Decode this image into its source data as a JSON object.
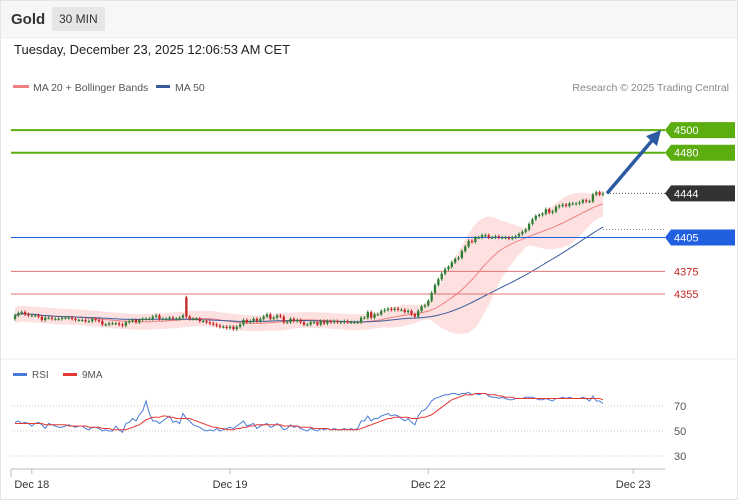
{
  "header": {
    "asset": "Gold",
    "timeframe": "30 MIN"
  },
  "datetime": "Tuesday, December 23, 2025 12:06:53 AM CET",
  "legend": {
    "ma20": "MA 20 + Bollinger Bands",
    "ma50": "MA 50"
  },
  "credit": "Research © 2025 Trading Central",
  "colors": {
    "up": "#2e7d32",
    "down": "#c62828",
    "ma20": "#f08080",
    "ma50": "#3a5a9a",
    "band": "#fde1e1",
    "target": "#5cad0f",
    "support": "#1f5fe0",
    "resist": "#e57373",
    "price": "#333333",
    "rsi": "#4a7bd8",
    "rsi_ma": "#e53935",
    "arrow": "#2c5aa0"
  },
  "levels": [
    {
      "value": 4500,
      "label": "4500",
      "kind": "target"
    },
    {
      "value": 4480,
      "label": "4480",
      "kind": "target"
    },
    {
      "value": 4444,
      "label": "4444",
      "kind": "price"
    },
    {
      "value": 4405,
      "label": "4405",
      "kind": "support"
    },
    {
      "value": 4375,
      "label": "4375",
      "kind": "resist"
    },
    {
      "value": 4355,
      "label": "4355",
      "kind": "resist"
    }
  ],
  "rsi": {
    "legend_rsi": "RSI",
    "legend_ma": "9MA",
    "ticks": [
      "70",
      "50",
      "30"
    ]
  },
  "chart_data": {
    "type": "candlestick",
    "x_labels": [
      "Dec 18",
      "Dec 19",
      "Dec 22",
      "Dec 23"
    ],
    "x_label_bars": [
      5,
      64,
      123,
      184
    ],
    "ylim": [
      4300,
      4510
    ],
    "closes": [
      4336,
      4338,
      4339,
      4337,
      4336,
      4336,
      4336,
      4335,
      4332,
      4334,
      4334,
      4333,
      4333,
      4333,
      4334,
      4334,
      4334,
      4333,
      4332,
      4332,
      4332,
      4331,
      4331,
      4333,
      4332,
      4331,
      4328,
      4328,
      4329,
      4329,
      4329,
      4328,
      4327,
      4330,
      4331,
      4332,
      4330,
      4332,
      4333,
      4333,
      4333,
      4335,
      4336,
      4333,
      4333,
      4333,
      4334,
      4333,
      4333,
      4334,
      4336,
      4335,
      4333,
      4333,
      4333,
      4331,
      4331,
      4330,
      4329,
      4328,
      4327,
      4326,
      4326,
      4325,
      4326,
      4324,
      4326,
      4328,
      4332,
      4330,
      4331,
      4333,
      4331,
      4333,
      4335,
      4337,
      4333,
      4334,
      4336,
      4335,
      4330,
      4330,
      4333,
      4331,
      4332,
      4330,
      4328,
      4328,
      4330,
      4330,
      4328,
      4331,
      4329,
      4331,
      4330,
      4331,
      4330,
      4330,
      4331,
      4330,
      4330,
      4330,
      4330,
      4334,
      4334,
      4339,
      4334,
      4337,
      4337,
      4340,
      4341,
      4342,
      4341,
      4342,
      4341,
      4341,
      4339,
      4340,
      4337,
      4335,
      4340,
      4344,
      4345,
      4349,
      4356,
      4363,
      4368,
      4373,
      4377,
      4379,
      4383,
      4386,
      4387,
      4393,
      4397,
      4402,
      4401,
      4405,
      4405,
      4407,
      4407,
      4405,
      4405,
      4406,
      4405,
      4405,
      4405,
      4404,
      4405,
      4406,
      4408,
      4410,
      4412,
      4417,
      4421,
      4424,
      4425,
      4426,
      4430,
      4427,
      4428,
      4432,
      4433,
      4434,
      4433,
      4435,
      4435,
      4435,
      4436,
      4438,
      4437,
      4437,
      4443,
      4445,
      4443,
      4444
    ],
    "opens": [
      4333,
      4336,
      4338,
      4339,
      4337,
      4336,
      4336,
      4336,
      4335,
      4332,
      4334,
      4334,
      4333,
      4333,
      4333,
      4334,
      4334,
      4334,
      4333,
      4332,
      4332,
      4332,
      4331,
      4331,
      4333,
      4332,
      4331,
      4328,
      4328,
      4329,
      4329,
      4329,
      4328,
      4327,
      4330,
      4331,
      4332,
      4330,
      4332,
      4333,
      4333,
      4333,
      4335,
      4336,
      4333,
      4333,
      4333,
      4334,
      4333,
      4333,
      4334,
      4352,
      4335,
      4333,
      4333,
      4333,
      4331,
      4331,
      4330,
      4329,
      4328,
      4327,
      4326,
      4326,
      4325,
      4326,
      4324,
      4326,
      4328,
      4332,
      4330,
      4331,
      4333,
      4331,
      4333,
      4335,
      4337,
      4333,
      4334,
      4336,
      4335,
      4330,
      4330,
      4333,
      4331,
      4332,
      4330,
      4328,
      4328,
      4330,
      4330,
      4328,
      4331,
      4329,
      4331,
      4330,
      4331,
      4330,
      4330,
      4331,
      4330,
      4330,
      4330,
      4330,
      4334,
      4334,
      4339,
      4334,
      4337,
      4337,
      4340,
      4341,
      4342,
      4341,
      4342,
      4341,
      4341,
      4339,
      4340,
      4337,
      4335,
      4340,
      4344,
      4345,
      4349,
      4356,
      4363,
      4368,
      4373,
      4377,
      4379,
      4383,
      4386,
      4387,
      4393,
      4397,
      4402,
      4401,
      4405,
      4405,
      4407,
      4407,
      4405,
      4405,
      4406,
      4405,
      4405,
      4405,
      4404,
      4405,
      4406,
      4408,
      4410,
      4412,
      4417,
      4421,
      4424,
      4425,
      4426,
      4430,
      4427,
      4428,
      4432,
      4433,
      4434,
      4433,
      4435,
      4435,
      4435,
      4436,
      4438,
      4437,
      4437,
      4443,
      4445,
      4443
    ],
    "rsi": [
      57,
      58,
      56,
      57,
      56,
      54,
      56,
      57,
      55,
      52,
      56,
      55,
      54,
      53,
      53,
      54,
      55,
      54,
      53,
      54,
      54,
      52,
      51,
      53,
      53,
      52,
      50,
      51,
      50,
      50,
      54,
      51,
      49,
      56,
      57,
      60,
      58,
      63,
      66,
      74,
      64,
      58,
      58,
      56,
      58,
      60,
      62,
      57,
      58,
      56,
      64,
      60,
      58,
      55,
      54,
      53,
      51,
      50,
      51,
      50,
      52,
      50,
      51,
      52,
      53,
      52,
      54,
      56,
      58,
      54,
      55,
      56,
      52,
      54,
      55,
      56,
      53,
      54,
      56,
      54,
      51,
      52,
      55,
      53,
      54,
      52,
      51,
      50,
      52,
      51,
      50,
      52,
      51,
      52,
      51,
      52,
      51,
      51,
      52,
      51,
      52,
      51,
      52,
      58,
      58,
      62,
      58,
      60,
      60,
      62,
      63,
      64,
      62,
      63,
      62,
      60,
      58,
      60,
      57,
      55,
      62,
      66,
      67,
      70,
      74,
      76,
      77,
      78,
      79,
      79,
      80,
      80,
      79,
      80,
      80,
      81,
      79,
      80,
      79,
      80,
      80,
      78,
      77,
      77,
      76,
      77,
      76,
      75,
      75,
      76,
      76,
      76,
      77,
      77,
      77,
      76,
      75,
      75,
      76,
      75,
      74,
      76,
      76,
      77,
      76,
      77,
      76,
      76,
      76,
      77,
      76,
      74,
      78,
      74,
      74,
      72
    ],
    "rsi_ma": [
      56,
      56,
      56,
      56,
      56,
      56,
      56,
      56,
      56,
      55,
      55,
      55,
      55,
      55,
      55,
      55,
      54,
      54,
      54,
      54,
      54,
      54,
      53,
      53,
      53,
      53,
      52,
      52,
      52,
      51,
      51,
      51,
      51,
      51,
      52,
      53,
      54,
      55,
      57,
      59,
      60,
      61,
      61,
      61,
      62,
      62,
      61,
      61,
      60,
      60,
      60,
      60,
      60,
      59,
      58,
      57,
      56,
      55,
      54,
      53,
      53,
      52,
      52,
      51,
      51,
      51,
      52,
      52,
      53,
      53,
      54,
      54,
      55,
      55,
      55,
      55,
      55,
      55,
      55,
      55,
      54,
      54,
      54,
      54,
      54,
      53,
      53,
      53,
      53,
      52,
      52,
      52,
      52,
      52,
      51,
      51,
      51,
      51,
      51,
      51,
      51,
      51,
      51,
      52,
      53,
      54,
      55,
      56,
      57,
      58,
      59,
      60,
      60,
      61,
      61,
      61,
      61,
      61,
      60,
      60,
      60,
      61,
      61,
      62,
      63,
      65,
      67,
      69,
      71,
      73,
      75,
      76,
      77,
      78,
      79,
      79,
      79,
      80,
      80,
      80,
      80,
      79,
      79,
      79,
      78,
      78,
      77,
      77,
      77,
      76,
      76,
      76,
      76,
      76,
      76,
      76,
      76,
      76,
      76,
      76,
      76,
      76,
      76,
      76,
      76,
      76,
      76,
      76,
      76,
      76,
      76,
      76,
      76,
      76,
      76,
      75
    ]
  }
}
